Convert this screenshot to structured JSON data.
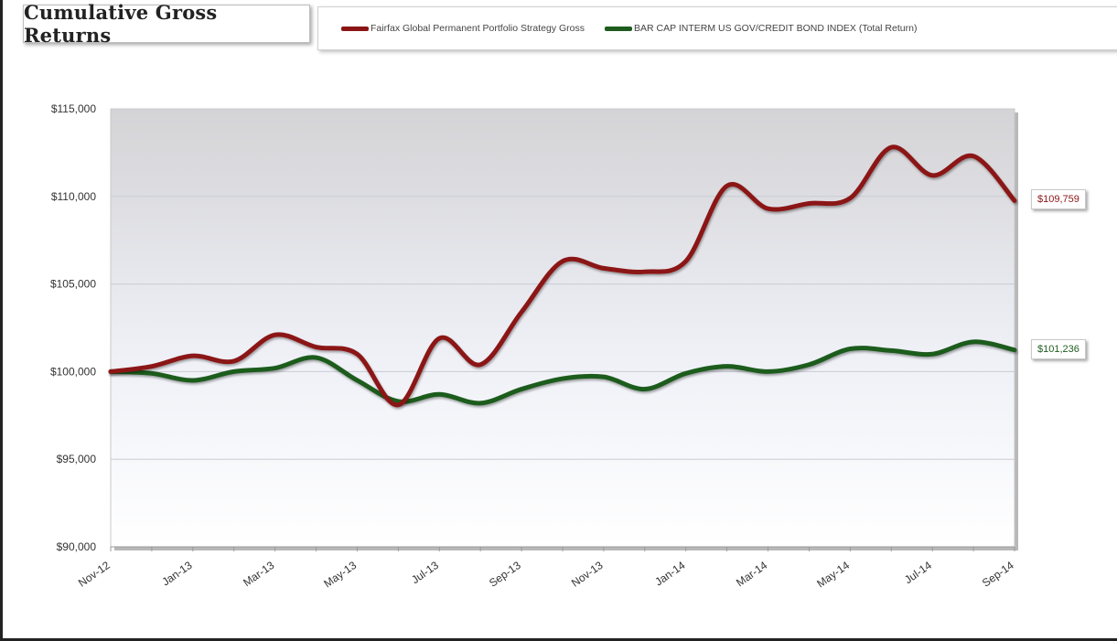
{
  "chart_data": {
    "type": "line",
    "title": "Cumulative Gross Returns",
    "xlabel": "",
    "ylabel": "",
    "ylim": [
      90000,
      115000
    ],
    "yticks": [
      90000,
      95000,
      100000,
      105000,
      110000,
      115000
    ],
    "ytick_labels": [
      "$90,000",
      "$95,000",
      "$100,000",
      "$105,000",
      "$110,000",
      "$115,000"
    ],
    "xtick_labels": [
      "Nov-12",
      "Jan-13",
      "Mar-13",
      "May-13",
      "Jul-13",
      "Sep-13",
      "Nov-13",
      "Jan-14",
      "Mar-14",
      "May-14",
      "Jul-14",
      "Sep-14"
    ],
    "categories": [
      "Nov-12",
      "Dec-12",
      "Jan-13",
      "Feb-13",
      "Mar-13",
      "Apr-13",
      "May-13",
      "Jun-13",
      "Jul-13",
      "Aug-13",
      "Sep-13",
      "Oct-13",
      "Nov-13",
      "Dec-13",
      "Jan-14",
      "Feb-14",
      "Mar-14",
      "Apr-14",
      "May-14",
      "Jun-14",
      "Jul-14",
      "Aug-14",
      "Sep-14"
    ],
    "grid": true,
    "legend_position": "top",
    "series": [
      {
        "name": "Fairfax Global Permanent Portfolio Strategy Gross",
        "color": "#8b1515",
        "values": [
          100000,
          100300,
          100900,
          100600,
          102100,
          101400,
          101000,
          98100,
          101900,
          100400,
          103400,
          106300,
          105900,
          105700,
          106300,
          110600,
          109300,
          109600,
          109900,
          112800,
          111200,
          112300,
          109759
        ],
        "end_label": "$109,759"
      },
      {
        "name": "BAR CAP INTERM US GOV/CREDIT BOND INDEX (Total Return)",
        "color": "#1e5c1e",
        "values": [
          100000,
          99900,
          99500,
          100000,
          100200,
          100800,
          99500,
          98300,
          98700,
          98200,
          99000,
          99600,
          99700,
          99000,
          99900,
          100300,
          100000,
          100400,
          101300,
          101200,
          101000,
          101700,
          101236
        ],
        "end_label": "$101,236"
      }
    ]
  }
}
